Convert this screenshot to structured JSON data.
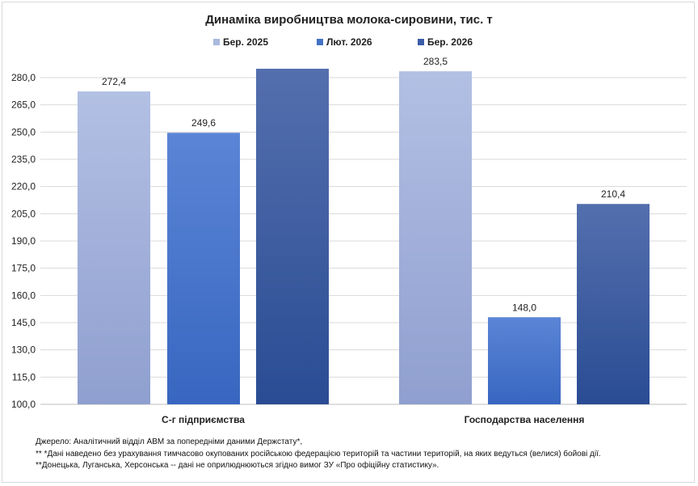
{
  "chart_data": {
    "type": "bar",
    "title": "Динаміка виробництва молока-сировини, тис. т",
    "categories": [
      "С-г підприємства",
      "Господарства населення"
    ],
    "series": [
      {
        "name": "Бер. 2025",
        "values": [
          272.4,
          283.5
        ],
        "labels": [
          "272,4",
          "283,5"
        ],
        "color": "#aab8de"
      },
      {
        "name": "Лют. 2026",
        "values": [
          249.6,
          148.0
        ],
        "labels": [
          "249,6",
          "148,0"
        ],
        "color": "#4472c4"
      },
      {
        "name": "Бер. 2026",
        "values": [
          284.9,
          210.4
        ],
        "labels": [
          null,
          "210,4"
        ],
        "color": "#3a5ca8"
      }
    ],
    "ylim": [
      100,
      280
    ],
    "yticks": [
      "100,0",
      "115,0",
      "130,0",
      "145,0",
      "160,0",
      "175,0",
      "190,0",
      "205,0",
      "220,0",
      "235,0",
      "250,0",
      "265,0",
      "280,0"
    ],
    "xlabel": "",
    "ylabel": "",
    "grid": true,
    "legend_position": "top"
  },
  "notes": [
    "Джерело:  Аналітичний відділ АВМ за попередніми даними Держстату*,",
    "** *Дані наведено  без урахування тимчасово окупованих російською федерацією територій та частини територій, на яких ведуться  (велися) бойові дії.",
    "**Донецька,  Луганська, Херсонська -- дані не оприлюднюються  згідно вимог ЗУ «Про офіційну статистику»."
  ]
}
